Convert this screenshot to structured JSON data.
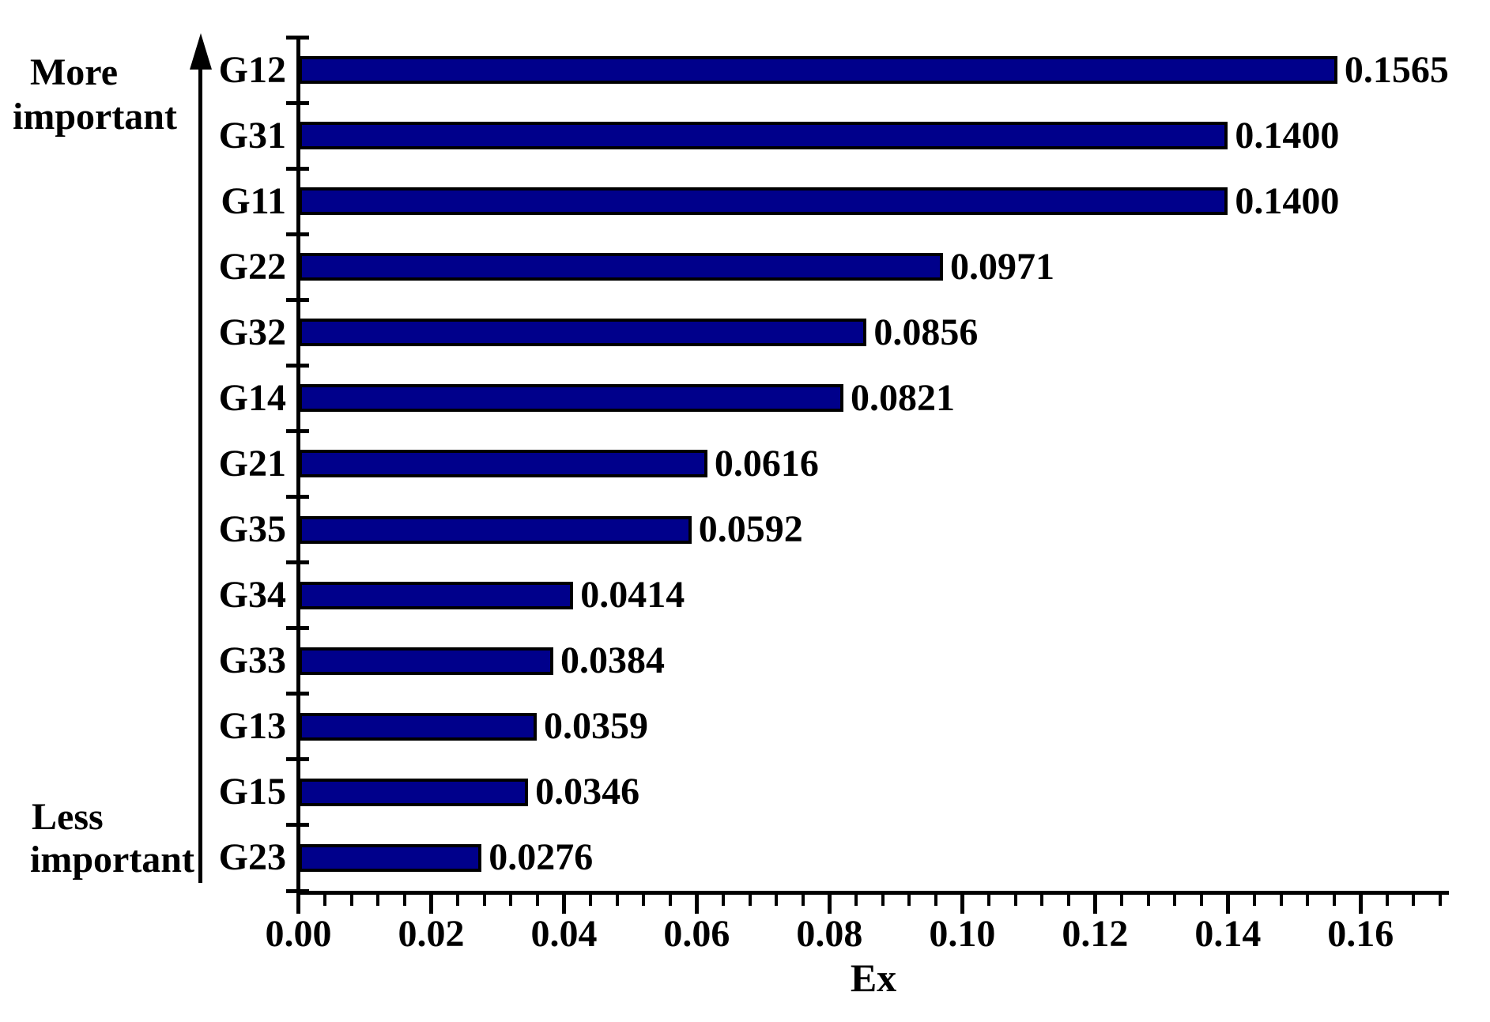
{
  "annotations": {
    "more_line1": "More",
    "more_line2": "important",
    "less_line1": "Less",
    "less_line2": "important"
  },
  "chart_data": {
    "type": "bar",
    "orientation": "horizontal",
    "title": "",
    "xlabel": "Ex",
    "ylabel": "",
    "categories": [
      "G12",
      "G31",
      "G11",
      "G22",
      "G32",
      "G14",
      "G21",
      "G35",
      "G34",
      "G33",
      "G13",
      "G15",
      "G23"
    ],
    "values": [
      0.1565,
      0.14,
      0.14,
      0.0971,
      0.0856,
      0.0821,
      0.0616,
      0.0592,
      0.0414,
      0.0384,
      0.0359,
      0.0346,
      0.0276
    ],
    "value_labels": [
      "0.1565",
      "0.1400",
      "0.1400",
      "0.0971",
      "0.0856",
      "0.0821",
      "0.0616",
      "0.0592",
      "0.0414",
      "0.0384",
      "0.0359",
      "0.0346",
      "0.0276"
    ],
    "x_tick_labels": [
      "0.00",
      "0.02",
      "0.04",
      "0.06",
      "0.08",
      "0.10",
      "0.12",
      "0.14",
      "0.16"
    ],
    "x_tick_values": [
      0,
      0.02,
      0.04,
      0.06,
      0.08,
      0.1,
      0.12,
      0.14,
      0.16
    ],
    "x_minor_tick_step": 0.004,
    "xlim": [
      0,
      0.1733
    ],
    "grid": false,
    "legend": "none",
    "bar_color": "#00008b",
    "bar_border_color": "#000000",
    "sort_order_top_to_bottom": "most important to least important"
  }
}
